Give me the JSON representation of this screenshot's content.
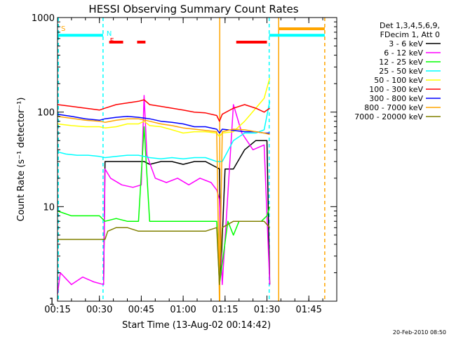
{
  "chart_data": {
    "type": "line",
    "title": "HESSI Observing Summary Count Rates",
    "xlabel": "Start Time (13-Aug-02 00:14:42)",
    "ylabel": "Count Rate (s⁻¹ detector⁻¹)",
    "yscale": "log",
    "ylim": [
      1,
      1000
    ],
    "xlim_minutes": [
      15,
      115
    ],
    "x_ticks": [
      {
        "m": 15,
        "label": "00:15"
      },
      {
        "m": 30,
        "label": "00:30"
      },
      {
        "m": 45,
        "label": "00:45"
      },
      {
        "m": 60,
        "label": "01:00"
      },
      {
        "m": 75,
        "label": "01:15"
      },
      {
        "m": 90,
        "label": "01:30"
      },
      {
        "m": 105,
        "label": "01:45"
      }
    ],
    "y_ticks": [
      {
        "v": 1,
        "label": "1"
      },
      {
        "v": 10,
        "label": "10"
      },
      {
        "v": 100,
        "label": "100"
      },
      {
        "v": 1000,
        "label": "1000"
      }
    ],
    "legend": {
      "placement": "right",
      "header": [
        "Det 1,3,4,5,6,9,",
        "FDecim 1, Att 0"
      ]
    },
    "series": [
      {
        "name": "3 - 6 keV",
        "color": "#000000",
        "points": [
          [
            31.5,
            1.5
          ],
          [
            32,
            30
          ],
          [
            36,
            30
          ],
          [
            40,
            30
          ],
          [
            44,
            30
          ],
          [
            46,
            30
          ],
          [
            48,
            28
          ],
          [
            52,
            30
          ],
          [
            56,
            30
          ],
          [
            60,
            28
          ],
          [
            64,
            30
          ],
          [
            68,
            30
          ],
          [
            72,
            26
          ],
          [
            73,
            25
          ],
          [
            73.5,
            2
          ],
          [
            75,
            25
          ],
          [
            78,
            25
          ],
          [
            82,
            40
          ],
          [
            86,
            50
          ],
          [
            89,
            50
          ],
          [
            90,
            50
          ],
          [
            91,
            1.5
          ]
        ]
      },
      {
        "name": "6 - 12 keV",
        "color": "#ff00ff",
        "points": [
          [
            15,
            1.2
          ],
          [
            16,
            2
          ],
          [
            20,
            1.5
          ],
          [
            24,
            1.8
          ],
          [
            28,
            1.6
          ],
          [
            31.5,
            1.5
          ],
          [
            32,
            25
          ],
          [
            34,
            20
          ],
          [
            38,
            17
          ],
          [
            42,
            16
          ],
          [
            45,
            17
          ],
          [
            46,
            150
          ],
          [
            47,
            35
          ],
          [
            50,
            20
          ],
          [
            54,
            18
          ],
          [
            58,
            20
          ],
          [
            62,
            17
          ],
          [
            66,
            20
          ],
          [
            70,
            18
          ],
          [
            72,
            15
          ],
          [
            73,
            12
          ],
          [
            74,
            1.5
          ],
          [
            78,
            120
          ],
          [
            81,
            60
          ],
          [
            85,
            40
          ],
          [
            89,
            45
          ],
          [
            91,
            1.5
          ]
        ]
      },
      {
        "name": "12 - 25 keV",
        "color": "#00ff00",
        "points": [
          [
            15,
            9
          ],
          [
            20,
            8
          ],
          [
            25,
            8
          ],
          [
            30,
            8
          ],
          [
            32,
            7
          ],
          [
            36,
            7.5
          ],
          [
            40,
            7
          ],
          [
            44,
            7
          ],
          [
            46,
            70
          ],
          [
            48,
            7
          ],
          [
            52,
            7
          ],
          [
            56,
            7
          ],
          [
            60,
            7
          ],
          [
            64,
            7
          ],
          [
            68,
            7
          ],
          [
            72,
            7
          ],
          [
            73,
            1.5
          ],
          [
            76,
            7
          ],
          [
            78,
            5
          ],
          [
            80,
            7
          ],
          [
            84,
            7
          ],
          [
            88,
            7
          ],
          [
            90,
            8
          ],
          [
            91,
            10
          ]
        ]
      },
      {
        "name": "25 - 50 keV",
        "color": "#00ffff",
        "points": [
          [
            15,
            38
          ],
          [
            18,
            36
          ],
          [
            22,
            35
          ],
          [
            26,
            35
          ],
          [
            30,
            34
          ],
          [
            32,
            33
          ],
          [
            36,
            34
          ],
          [
            40,
            35
          ],
          [
            44,
            35
          ],
          [
            48,
            33
          ],
          [
            52,
            32
          ],
          [
            56,
            33
          ],
          [
            60,
            32
          ],
          [
            64,
            33
          ],
          [
            68,
            33
          ],
          [
            72,
            30
          ],
          [
            74,
            30
          ],
          [
            78,
            50
          ],
          [
            82,
            60
          ],
          [
            86,
            60
          ],
          [
            89,
            65
          ],
          [
            91,
            130
          ]
        ]
      },
      {
        "name": "50 - 100 keV",
        "color": "#ffff00",
        "points": [
          [
            15,
            75
          ],
          [
            20,
            72
          ],
          [
            25,
            70
          ],
          [
            30,
            70
          ],
          [
            32,
            68
          ],
          [
            36,
            70
          ],
          [
            40,
            75
          ],
          [
            44,
            75
          ],
          [
            46,
            80
          ],
          [
            48,
            72
          ],
          [
            52,
            70
          ],
          [
            56,
            65
          ],
          [
            60,
            60
          ],
          [
            64,
            62
          ],
          [
            68,
            62
          ],
          [
            72,
            60
          ],
          [
            73,
            55
          ],
          [
            74,
            60
          ],
          [
            78,
            62
          ],
          [
            82,
            80
          ],
          [
            86,
            110
          ],
          [
            89,
            140
          ],
          [
            91,
            230
          ]
        ]
      },
      {
        "name": "100 - 300 keV",
        "color": "#ff0000",
        "points": [
          [
            15,
            120
          ],
          [
            20,
            115
          ],
          [
            25,
            110
          ],
          [
            30,
            105
          ],
          [
            32,
            110
          ],
          [
            36,
            120
          ],
          [
            40,
            125
          ],
          [
            44,
            130
          ],
          [
            46,
            135
          ],
          [
            48,
            120
          ],
          [
            52,
            115
          ],
          [
            56,
            110
          ],
          [
            60,
            105
          ],
          [
            64,
            100
          ],
          [
            68,
            98
          ],
          [
            72,
            92
          ],
          [
            73,
            80
          ],
          [
            74,
            95
          ],
          [
            78,
            110
          ],
          [
            82,
            120
          ],
          [
            86,
            110
          ],
          [
            89,
            100
          ],
          [
            91,
            110
          ]
        ]
      },
      {
        "name": "300 - 800 keV",
        "color": "#0000ff",
        "points": [
          [
            15,
            95
          ],
          [
            20,
            90
          ],
          [
            25,
            85
          ],
          [
            30,
            82
          ],
          [
            32,
            85
          ],
          [
            36,
            88
          ],
          [
            40,
            90
          ],
          [
            44,
            88
          ],
          [
            48,
            85
          ],
          [
            52,
            80
          ],
          [
            56,
            78
          ],
          [
            60,
            75
          ],
          [
            64,
            70
          ],
          [
            68,
            70
          ],
          [
            72,
            66
          ],
          [
            73,
            60
          ],
          [
            74,
            66
          ],
          [
            78,
            64
          ],
          [
            82,
            62
          ],
          [
            86,
            62
          ],
          [
            89,
            60
          ],
          [
            91,
            60
          ]
        ]
      },
      {
        "name": "800 - 7000 keV",
        "color": "#ffa500",
        "points": [
          [
            15,
            90
          ],
          [
            20,
            86
          ],
          [
            25,
            82
          ],
          [
            30,
            80
          ],
          [
            32,
            78
          ],
          [
            36,
            82
          ],
          [
            40,
            85
          ],
          [
            44,
            85
          ],
          [
            48,
            80
          ],
          [
            52,
            75
          ],
          [
            56,
            72
          ],
          [
            60,
            68
          ],
          [
            64,
            66
          ],
          [
            68,
            64
          ],
          [
            72,
            62
          ],
          [
            73,
            1
          ],
          [
            74,
            62
          ],
          [
            78,
            66
          ],
          [
            82,
            65
          ],
          [
            86,
            62
          ],
          [
            89,
            60
          ],
          [
            91,
            58
          ]
        ]
      },
      {
        "name": "7000 - 20000 keV",
        "color": "#808000",
        "points": [
          [
            15,
            4.5
          ],
          [
            20,
            4.5
          ],
          [
            25,
            4.5
          ],
          [
            30,
            4.5
          ],
          [
            32,
            4.5
          ],
          [
            33,
            5.5
          ],
          [
            36,
            6
          ],
          [
            40,
            6
          ],
          [
            44,
            5.5
          ],
          [
            48,
            5.5
          ],
          [
            52,
            5.5
          ],
          [
            56,
            5.5
          ],
          [
            60,
            5.5
          ],
          [
            64,
            5.5
          ],
          [
            68,
            5.5
          ],
          [
            72,
            6
          ],
          [
            73,
            1.5
          ],
          [
            74,
            6
          ],
          [
            78,
            7
          ],
          [
            82,
            7
          ],
          [
            86,
            7
          ],
          [
            89,
            7
          ],
          [
            91,
            6
          ]
        ]
      }
    ],
    "vertical_markers": [
      {
        "m": 15.3,
        "color": "#00ffff",
        "style": "dashed"
      },
      {
        "m": 31.3,
        "color": "#00ffff",
        "style": "dashed"
      },
      {
        "m": 90.8,
        "color": "#00ffff",
        "style": "dashed"
      },
      {
        "m": 73.1,
        "color": "#ffa500",
        "style": "solid"
      },
      {
        "m": 94.2,
        "color": "#ffa500",
        "style": "solid"
      },
      {
        "m": 110.7,
        "color": "#ffa500",
        "style": "dashed"
      }
    ],
    "flag_bars": [
      {
        "label": "S",
        "label_color": "#ffa500",
        "color": "#ffa500",
        "y": 760,
        "segments": [
          [
            94.2,
            110.7
          ]
        ]
      },
      {
        "label": "N",
        "label_color": "#00ffff",
        "color": "#00ffff",
        "y": 650,
        "segments": [
          [
            15,
            31.3
          ],
          [
            90.8,
            110.7
          ]
        ]
      },
      {
        "label": "F",
        "label_color": "#ff0000",
        "color": "#ff0000",
        "y": 550,
        "segments": [
          [
            33.5,
            38.5
          ],
          [
            43.5,
            46.5
          ],
          [
            79,
            90
          ]
        ]
      }
    ],
    "footer_date": "20-Feb-2010 08:50"
  }
}
